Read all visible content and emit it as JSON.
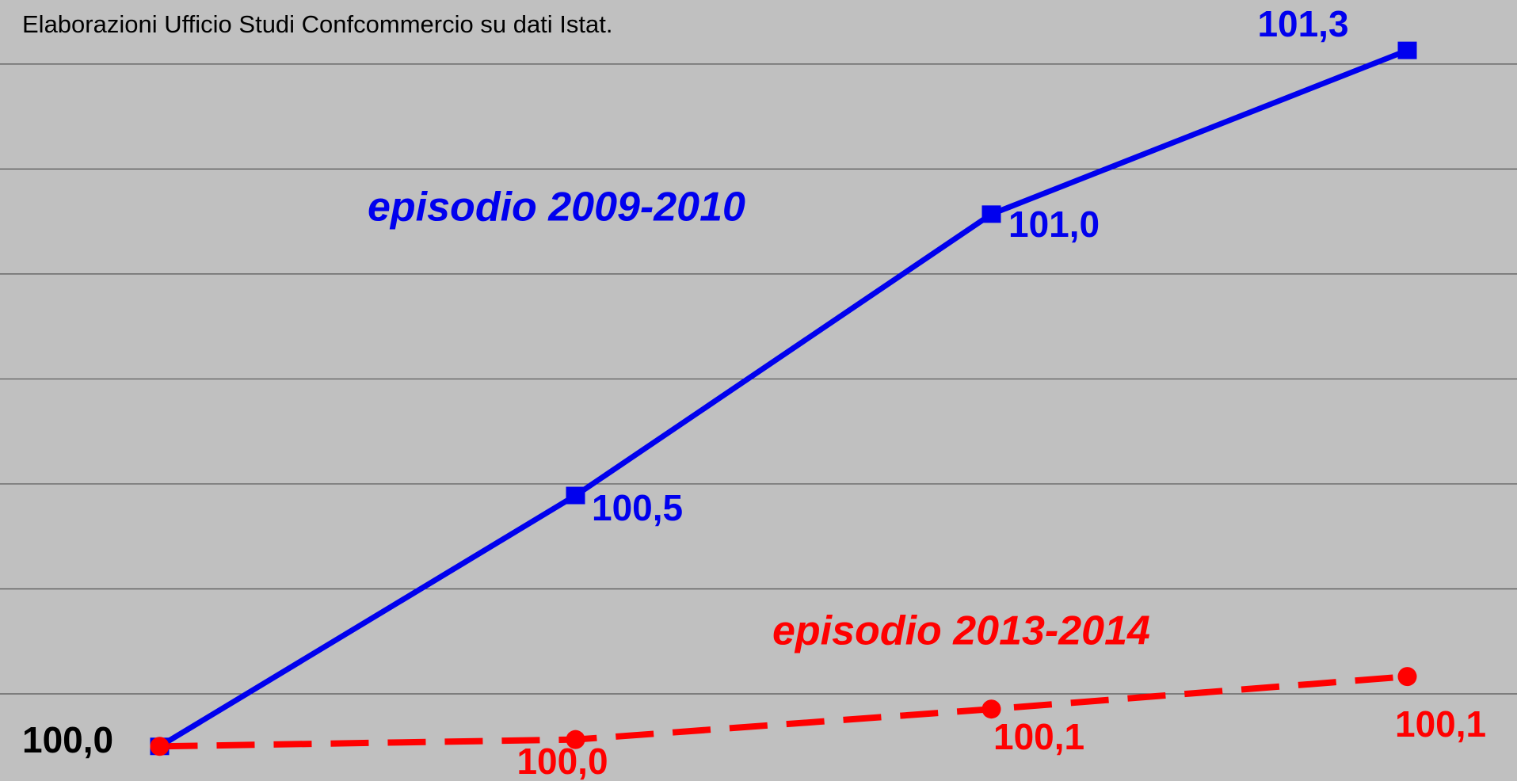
{
  "chart_data": {
    "type": "line",
    "source": "Elaborazioni Ufficio Studi Confcommercio su dati Istat.",
    "categories": [
      null,
      null,
      null,
      null
    ],
    "series": [
      {
        "name": "episodio 2009-2010",
        "color": "#0000ee",
        "marker": "square",
        "dash": false,
        "values": [
          100.0,
          100.478,
          101.014,
          101.326
        ],
        "value_labels": [
          "100,0",
          "100,5",
          "101,0",
          "101,3"
        ]
      },
      {
        "name": "episodio 2013-2014",
        "color": "#ff0000",
        "marker": "circle",
        "dash": true,
        "values": [
          100.0,
          100.013,
          100.071,
          100.133
        ],
        "value_labels": [
          null,
          "100,0",
          "100,1",
          "100,1"
        ]
      }
    ],
    "ylim": [
      99.934,
      101.422
    ],
    "yticks": [
      100.1,
      100.3,
      100.5,
      100.7,
      100.9,
      101.1,
      101.3
    ],
    "grid": true
  }
}
